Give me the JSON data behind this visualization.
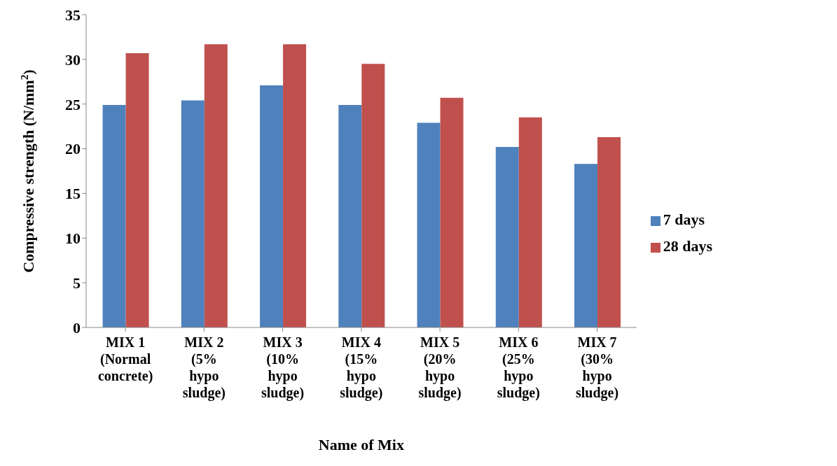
{
  "chart_data": {
    "type": "bar",
    "xlabel": "Name of Mix",
    "ylabel": "Compressive strength (N/mm$^{2}$)",
    "categories": [
      "MIX 1 (Normal concrete)",
      "MIX 2 (5% hypo sludge)",
      "MIX 3 (10% hypo sludge)",
      "MIX 4 (15% hypo sludge)",
      "MIX 5 (20% hypo sludge)",
      "MIX 6 (25% hypo sludge)",
      "MIX 7 (30% hypo sludge)"
    ],
    "series": [
      {
        "name": "7 days",
        "color": "#4f81bd",
        "values": [
          24.9,
          25.4,
          27.1,
          24.9,
          22.9,
          20.2,
          18.3
        ]
      },
      {
        "name": "28 days",
        "color": "#c0504d",
        "values": [
          30.7,
          31.7,
          31.7,
          29.5,
          25.7,
          23.5,
          21.3
        ]
      }
    ],
    "ylim": [
      0,
      35
    ],
    "yticks": [
      0,
      5,
      10,
      15,
      20,
      25,
      30,
      35
    ],
    "grid": false,
    "legend": "right"
  }
}
